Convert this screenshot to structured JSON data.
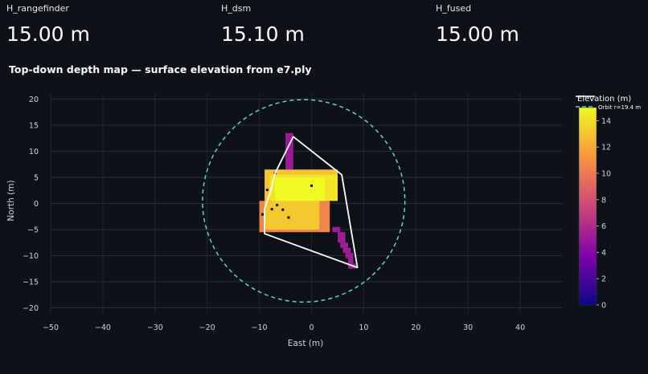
{
  "metrics": [
    {
      "label": "H_rangefinder",
      "value": "15.00 m"
    },
    {
      "label": "H_dsm",
      "value": "15.10 m"
    },
    {
      "label": "H_fused",
      "value": "15.00 m"
    }
  ],
  "section_title": "Top-down depth map — surface elevation from e7.ply",
  "chart_data": {
    "type": "heatmap",
    "title": "",
    "xlabel": "East (m)",
    "ylabel": "North (m)",
    "xlim": [
      -50,
      48
    ],
    "ylim": [
      -21,
      21
    ],
    "xticks": [
      -50,
      -40,
      -30,
      -20,
      -10,
      0,
      10,
      20,
      30,
      40
    ],
    "yticks": [
      -20,
      -15,
      -10,
      -5,
      0,
      5,
      10,
      15,
      20
    ],
    "grid": true,
    "legend_position": "top-right",
    "legend_entries": [
      "Orbit r=19.4 m"
    ],
    "colorscale": "plasma",
    "colorbar": {
      "title": "Elevation (m)",
      "ticks": [
        0,
        2,
        4,
        6,
        8,
        10,
        12,
        14
      ],
      "range": [
        0,
        15
      ]
    },
    "cells": [
      {
        "x0": -10,
        "x1": 3.5,
        "y0": -5.5,
        "y1": 0.5,
        "z": 10.5
      },
      {
        "x0": -9,
        "x1": 1.5,
        "y0": -5,
        "y1": 0.5,
        "z": 13.2
      },
      {
        "x0": -9,
        "x1": 5,
        "y0": 0.5,
        "y1": 6.5,
        "z": 13.0
      },
      {
        "x0": -8,
        "x1": 5,
        "y0": 0.5,
        "y1": 5.5,
        "z": 14.2
      },
      {
        "x0": -7,
        "x1": 2.5,
        "y0": 0.5,
        "y1": 5,
        "z": 15
      },
      {
        "x0": -5,
        "x1": -3.5,
        "y0": 6.5,
        "y1": 13.5,
        "z": 5.0
      },
      {
        "x0": 4,
        "x1": 5.5,
        "y0": -5.5,
        "y1": -4.5,
        "z": 5.2
      },
      {
        "x0": 5,
        "x1": 6.5,
        "y0": -6.5,
        "y1": -5.5,
        "z": 5.2
      },
      {
        "x0": 5,
        "x1": 6.5,
        "y0": -7.5,
        "y1": -6.5,
        "z": 5.2
      },
      {
        "x0": 5.5,
        "x1": 7,
        "y0": -8.5,
        "y1": -7.5,
        "z": 5.2
      },
      {
        "x0": 6,
        "x1": 7.5,
        "y0": -9.5,
        "y1": -8.5,
        "z": 5.2
      },
      {
        "x0": 6.5,
        "x1": 8,
        "y0": -10.5,
        "y1": -9.5,
        "z": 5.2
      },
      {
        "x0": 7,
        "x1": 8,
        "y0": -11.5,
        "y1": -10.5,
        "z": 5.2
      },
      {
        "x0": 7,
        "x1": 8.5,
        "y0": -12.5,
        "y1": -11.5,
        "z": 5.2
      }
    ],
    "holes": [
      {
        "x": -7,
        "y": 5.8
      },
      {
        "x": -8.5,
        "y": 2.6
      },
      {
        "x": 0,
        "y": 3.4
      },
      {
        "x": -6.6,
        "y": -0.3
      },
      {
        "x": -7.6,
        "y": -1.1
      },
      {
        "x": -5.5,
        "y": -1.2
      },
      {
        "x": -9.4,
        "y": -2.1
      },
      {
        "x": -4.4,
        "y": -2.7
      }
    ],
    "hull": [
      [
        -3.5,
        12.8
      ],
      [
        5.8,
        5.5
      ],
      [
        8.8,
        -12.3
      ],
      [
        -9.0,
        -5.8
      ],
      [
        -9.0,
        -1.0
      ],
      [
        -7.8,
        2.5
      ],
      [
        -7.0,
        5.8
      ]
    ],
    "orbit": {
      "cx": -1.5,
      "cy": 0.5,
      "r": 19.4,
      "name": "Orbit r=19.4 m",
      "color": "#5ed3d3"
    },
    "hull_color": "#ffffff"
  }
}
